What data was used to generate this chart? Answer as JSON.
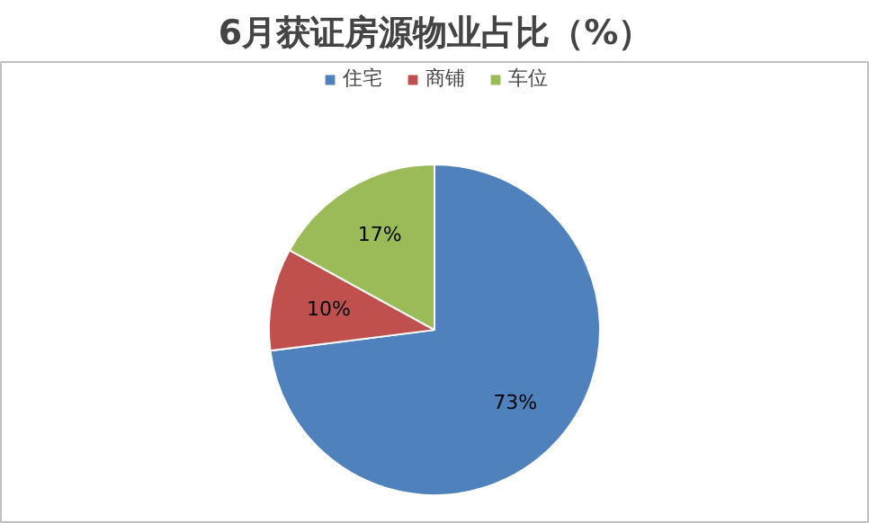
{
  "chart_data": {
    "type": "pie",
    "title": "6月获证房源物业占比（%）",
    "categories": [
      "住宅",
      "商铺",
      "车位"
    ],
    "values": [
      73,
      10,
      17
    ],
    "colors": [
      "#4f81bd",
      "#c0504d",
      "#9bbb59"
    ],
    "value_labels": [
      "73%",
      "10%",
      "17%"
    ],
    "legend": "top"
  }
}
